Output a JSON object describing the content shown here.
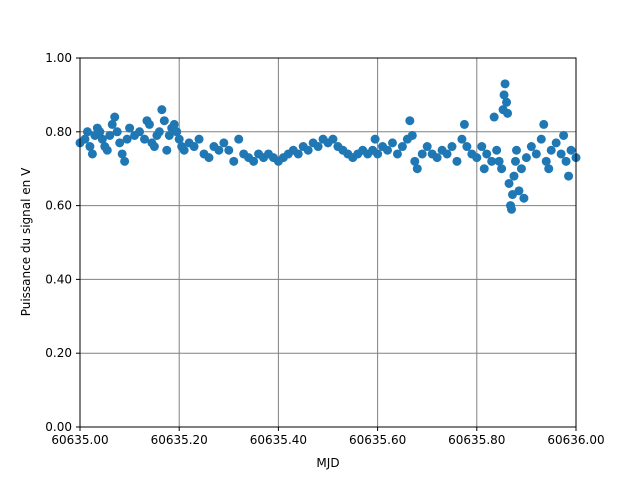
{
  "chart_data": {
    "type": "scatter",
    "title": "",
    "xlabel": "MJD",
    "ylabel": "Puissance du signal en V",
    "xlim": [
      60635.0,
      60636.0
    ],
    "ylim": [
      0.0,
      1.0
    ],
    "x_ticks": [
      "60635.00",
      "60635.20",
      "60635.40",
      "60635.60",
      "60635.80",
      "60636.00"
    ],
    "y_ticks": [
      "0.00",
      "0.20",
      "0.40",
      "0.60",
      "0.80",
      "1.00"
    ],
    "grid": true,
    "marker_color": "#1f77b4",
    "grid_color": "#808080",
    "series": [
      {
        "points": [
          [
            60635.0,
            0.77
          ],
          [
            60635.01,
            0.78
          ],
          [
            60635.015,
            0.8
          ],
          [
            60635.02,
            0.76
          ],
          [
            60635.025,
            0.74
          ],
          [
            60635.03,
            0.79
          ],
          [
            60635.035,
            0.81
          ],
          [
            60635.04,
            0.8
          ],
          [
            60635.045,
            0.78
          ],
          [
            60635.05,
            0.76
          ],
          [
            60635.055,
            0.75
          ],
          [
            60635.06,
            0.79
          ],
          [
            60635.065,
            0.82
          ],
          [
            60635.07,
            0.84
          ],
          [
            60635.075,
            0.8
          ],
          [
            60635.08,
            0.77
          ],
          [
            60635.085,
            0.74
          ],
          [
            60635.09,
            0.72
          ],
          [
            60635.095,
            0.78
          ],
          [
            60635.1,
            0.81
          ],
          [
            60635.11,
            0.79
          ],
          [
            60635.12,
            0.8
          ],
          [
            60635.13,
            0.78
          ],
          [
            60635.135,
            0.83
          ],
          [
            60635.14,
            0.82
          ],
          [
            60635.145,
            0.77
          ],
          [
            60635.15,
            0.76
          ],
          [
            60635.155,
            0.79
          ],
          [
            60635.16,
            0.8
          ],
          [
            60635.165,
            0.86
          ],
          [
            60635.17,
            0.83
          ],
          [
            60635.175,
            0.75
          ],
          [
            60635.18,
            0.79
          ],
          [
            60635.185,
            0.81
          ],
          [
            60635.19,
            0.82
          ],
          [
            60635.195,
            0.8
          ],
          [
            60635.2,
            0.78
          ],
          [
            60635.205,
            0.76
          ],
          [
            60635.21,
            0.75
          ],
          [
            60635.22,
            0.77
          ],
          [
            60635.23,
            0.76
          ],
          [
            60635.24,
            0.78
          ],
          [
            60635.25,
            0.74
          ],
          [
            60635.26,
            0.73
          ],
          [
            60635.27,
            0.76
          ],
          [
            60635.28,
            0.75
          ],
          [
            60635.29,
            0.77
          ],
          [
            60635.3,
            0.75
          ],
          [
            60635.31,
            0.72
          ],
          [
            60635.32,
            0.78
          ],
          [
            60635.33,
            0.74
          ],
          [
            60635.34,
            0.73
          ],
          [
            60635.35,
            0.72
          ],
          [
            60635.36,
            0.74
          ],
          [
            60635.37,
            0.73
          ],
          [
            60635.38,
            0.74
          ],
          [
            60635.39,
            0.73
          ],
          [
            60635.4,
            0.72
          ],
          [
            60635.41,
            0.73
          ],
          [
            60635.42,
            0.74
          ],
          [
            60635.43,
            0.75
          ],
          [
            60635.44,
            0.74
          ],
          [
            60635.45,
            0.76
          ],
          [
            60635.46,
            0.75
          ],
          [
            60635.47,
            0.77
          ],
          [
            60635.48,
            0.76
          ],
          [
            60635.49,
            0.78
          ],
          [
            60635.5,
            0.77
          ],
          [
            60635.51,
            0.78
          ],
          [
            60635.52,
            0.76
          ],
          [
            60635.53,
            0.75
          ],
          [
            60635.54,
            0.74
          ],
          [
            60635.55,
            0.73
          ],
          [
            60635.56,
            0.74
          ],
          [
            60635.57,
            0.75
          ],
          [
            60635.58,
            0.74
          ],
          [
            60635.59,
            0.75
          ],
          [
            60635.595,
            0.78
          ],
          [
            60635.6,
            0.74
          ],
          [
            60635.61,
            0.76
          ],
          [
            60635.62,
            0.75
          ],
          [
            60635.63,
            0.77
          ],
          [
            60635.64,
            0.74
          ],
          [
            60635.65,
            0.76
          ],
          [
            60635.66,
            0.78
          ],
          [
            60635.665,
            0.83
          ],
          [
            60635.67,
            0.79
          ],
          [
            60635.675,
            0.72
          ],
          [
            60635.68,
            0.7
          ],
          [
            60635.69,
            0.74
          ],
          [
            60635.7,
            0.76
          ],
          [
            60635.71,
            0.74
          ],
          [
            60635.72,
            0.73
          ],
          [
            60635.73,
            0.75
          ],
          [
            60635.74,
            0.74
          ],
          [
            60635.75,
            0.76
          ],
          [
            60635.76,
            0.72
          ],
          [
            60635.77,
            0.78
          ],
          [
            60635.775,
            0.82
          ],
          [
            60635.78,
            0.76
          ],
          [
            60635.79,
            0.74
          ],
          [
            60635.8,
            0.73
          ],
          [
            60635.81,
            0.76
          ],
          [
            60635.815,
            0.7
          ],
          [
            60635.82,
            0.74
          ],
          [
            60635.83,
            0.72
          ],
          [
            60635.835,
            0.84
          ],
          [
            60635.84,
            0.75
          ],
          [
            60635.845,
            0.72
          ],
          [
            60635.85,
            0.7
          ],
          [
            60635.853,
            0.86
          ],
          [
            60635.855,
            0.9
          ],
          [
            60635.857,
            0.93
          ],
          [
            60635.86,
            0.88
          ],
          [
            60635.862,
            0.85
          ],
          [
            60635.865,
            0.66
          ],
          [
            60635.868,
            0.6
          ],
          [
            60635.87,
            0.59
          ],
          [
            60635.872,
            0.63
          ],
          [
            60635.875,
            0.68
          ],
          [
            60635.878,
            0.72
          ],
          [
            60635.88,
            0.75
          ],
          [
            60635.885,
            0.64
          ],
          [
            60635.89,
            0.7
          ],
          [
            60635.895,
            0.62
          ],
          [
            60635.9,
            0.73
          ],
          [
            60635.91,
            0.76
          ],
          [
            60635.92,
            0.74
          ],
          [
            60635.93,
            0.78
          ],
          [
            60635.935,
            0.82
          ],
          [
            60635.94,
            0.72
          ],
          [
            60635.945,
            0.7
          ],
          [
            60635.95,
            0.75
          ],
          [
            60635.96,
            0.77
          ],
          [
            60635.97,
            0.74
          ],
          [
            60635.975,
            0.79
          ],
          [
            60635.98,
            0.72
          ],
          [
            60635.985,
            0.68
          ],
          [
            60635.99,
            0.75
          ],
          [
            60636.0,
            0.73
          ]
        ]
      }
    ]
  }
}
